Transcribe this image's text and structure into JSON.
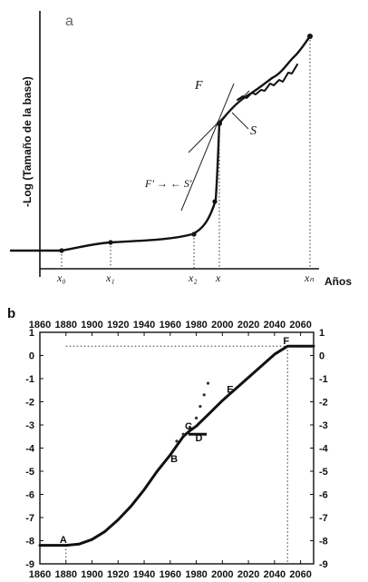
{
  "chart_data": [
    {
      "panel": "a",
      "type": "line",
      "ylabel": "-Log (Tamaño de la base)",
      "xlabel": "Años",
      "x_tick_labels": [
        "x₀",
        "x₁",
        "x₂",
        "x",
        "xₙ"
      ],
      "annotations": [
        "F",
        "S",
        "F' → ← S'"
      ]
    },
    {
      "panel": "b",
      "type": "line",
      "x_ticks": [
        1860,
        1880,
        1900,
        1920,
        1940,
        1960,
        1980,
        2000,
        2020,
        2040,
        2060
      ],
      "x_tick_labels_top": [
        "1860",
        "1880",
        "1900",
        "1920",
        "1940",
        "1960",
        "1980",
        "2000",
        "2020",
        "2040",
        "2060"
      ],
      "x_tick_labels_bottom": [
        "1860",
        "1880",
        "1900",
        "1920",
        "1940",
        "1960",
        "1980",
        "2000",
        "2020",
        "2040",
        "2060"
      ],
      "y_ticks": [
        1,
        0,
        -1,
        -2,
        -3,
        -4,
        -5,
        -6,
        -7,
        -8,
        -9
      ],
      "y_tick_labels": [
        "1",
        "0",
        "-1",
        "-2",
        "-3",
        "-4",
        "-5",
        "-6",
        "-7",
        "-8",
        "-9"
      ],
      "xlim": [
        1860,
        2070
      ],
      "ylim": [
        -9,
        1
      ],
      "series": [
        {
          "x": [
            1860,
            1880,
            1890,
            1900,
            1910,
            1920,
            1930,
            1940,
            1950,
            1960,
            1965,
            1970,
            1975,
            1980,
            1990,
            2000,
            2010,
            2020,
            2030,
            2040,
            2050,
            2070
          ],
          "y": [
            -8.2,
            -8.2,
            -8.15,
            -7.95,
            -7.6,
            -7.1,
            -6.5,
            -5.8,
            -5.0,
            -4.3,
            -3.9,
            -3.5,
            -3.25,
            -3.05,
            -2.5,
            -1.95,
            -1.45,
            -0.95,
            -0.45,
            0.05,
            0.4,
            0.4
          ]
        },
        {
          "x": [
            1965,
            1970,
            1975,
            1980,
            1983,
            1986,
            1989
          ],
          "y": [
            -3.7,
            -3.4,
            -3.1,
            -2.7,
            -2.2,
            -1.7,
            -1.2
          ]
        }
      ],
      "reference_lines": {
        "y": 0.4,
        "x": 2050,
        "x_start": 1880
      },
      "point_labels": [
        {
          "label": "A",
          "x": 1878,
          "y": -8.1
        },
        {
          "label": "B",
          "x": 1963,
          "y": -4.6
        },
        {
          "label": "C",
          "x": 1974,
          "y": -3.2
        },
        {
          "label": "D",
          "x": 1982,
          "y": -3.7
        },
        {
          "label": "E",
          "x": 2006,
          "y": -1.6
        },
        {
          "label": "F",
          "x": 2049,
          "y": 0.5
        }
      ],
      "segment_D": {
        "x": [
          1974,
          1988
        ],
        "y": -3.4
      }
    }
  ]
}
